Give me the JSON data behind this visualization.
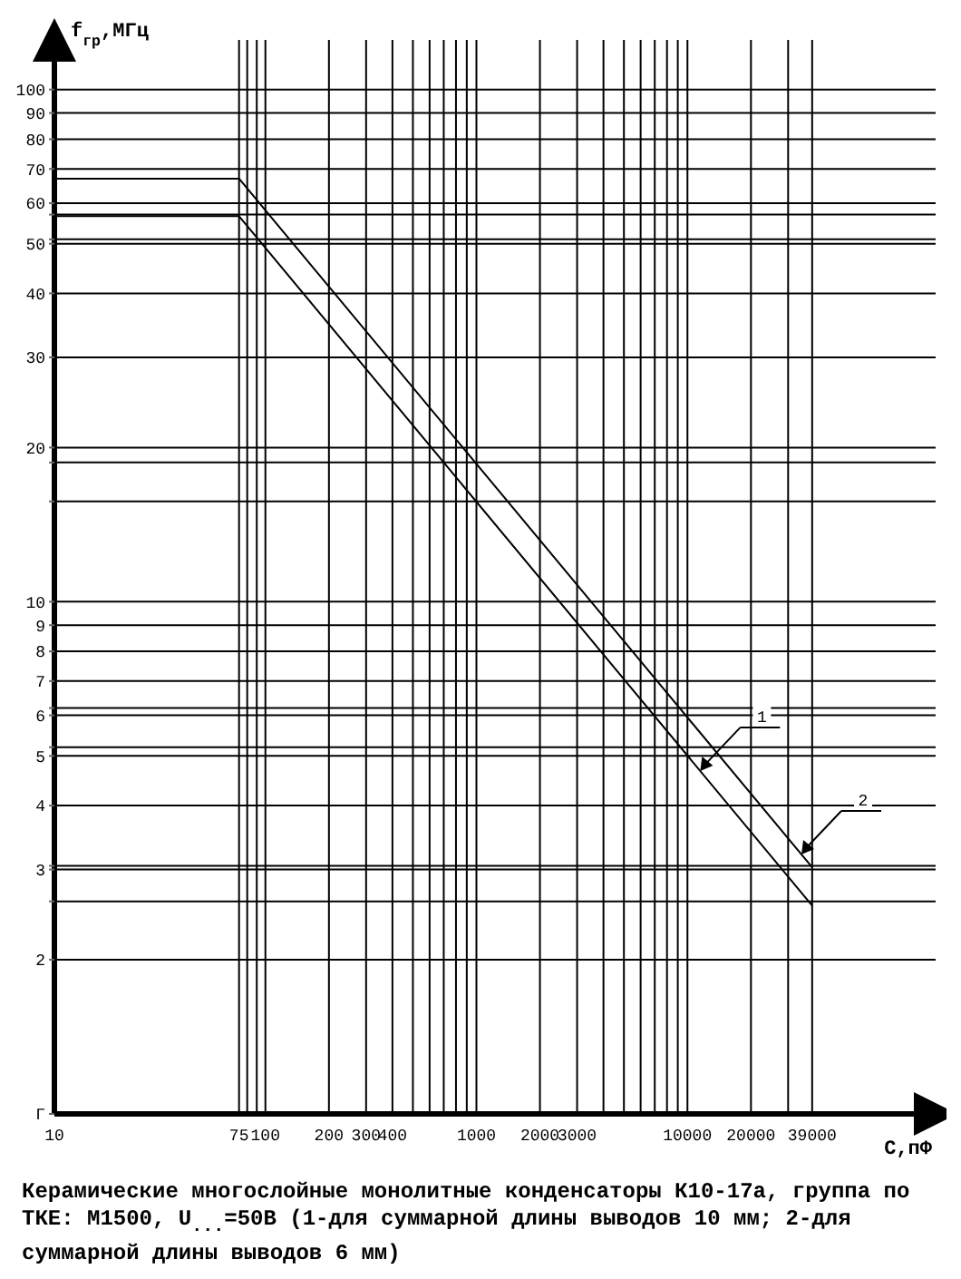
{
  "chart_data": {
    "type": "line",
    "ylabel": "f$_{гр}$,МГц",
    "xlabel": "С,пФ",
    "annotations": [
      "Керамические многослойные монолитные конденсаторы К10-17а, группа по ТКЕ: М1500, U$_{...}$=50В (1-для суммарной длины выводов 10 мм; 2-для суммарной длины выводов 6 мм)",
      {
        "text": "1",
        "x": 11500,
        "y": 4.67
      },
      {
        "text": "2",
        "x": 34700,
        "y": 3.21
      }
    ],
    "log": "xy",
    "grid": true,
    "legend": false,
    "marker": "none",
    "line_style": "solid",
    "xlim": [
      10,
      150000
    ],
    "ylim": [
      1,
      125
    ],
    "xticks": [
      10,
      75,
      {
        "value": 82,
        "label": null
      },
      {
        "value": 91,
        "label": null
      },
      100,
      200,
      300,
      400,
      {
        "value": 500,
        "label": null
      },
      {
        "value": 600,
        "label": null
      },
      {
        "value": 700,
        "label": null
      },
      {
        "value": 800,
        "label": null
      },
      {
        "value": 900,
        "label": null
      },
      1000,
      2000,
      3000,
      {
        "value": 4000,
        "label": null
      },
      {
        "value": 5000,
        "label": null
      },
      {
        "value": 6000,
        "label": null
      },
      {
        "value": 7000,
        "label": null
      },
      {
        "value": 8000,
        "label": null
      },
      {
        "value": 9000,
        "label": null
      },
      10000,
      20000,
      {
        "value": 30000,
        "label": null
      },
      39000
    ],
    "yticks": [
      {
        "value": 1,
        "label": "Г"
      },
      2,
      {
        "value": 2.6,
        "label": null
      },
      3,
      {
        "value": 3.05,
        "label": null
      },
      4,
      5,
      {
        "value": 5.2,
        "label": null
      },
      6,
      {
        "value": 6.2,
        "label": null
      },
      7,
      8,
      9,
      10,
      {
        "value": 15.7,
        "label": null
      },
      {
        "value": 18.7,
        "label": null
      },
      20,
      30,
      40,
      50,
      {
        "value": 51,
        "label": null
      },
      {
        "value": 57,
        "label": null
      },
      60,
      70,
      80,
      90,
      100
    ],
    "series": [
      {
        "color": "#000000",
        "x": [
          10,
          75,
          39000
        ],
        "values": [
          56.6,
          56.6,
          2.55
        ]
      },
      {
        "color": "#000000",
        "x": [
          10,
          75,
          39000
        ],
        "values": [
          67,
          67,
          3.03
        ]
      }
    ]
  }
}
